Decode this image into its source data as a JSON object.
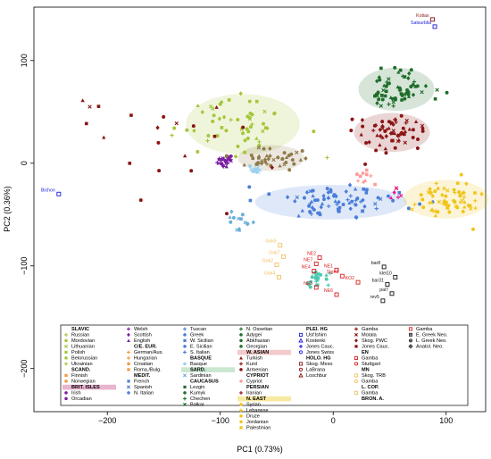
{
  "chart_data": {
    "type": "scatter",
    "xlabel": "PC1 (0.73%)",
    "ylabel": "PC2 (0.36%)",
    "xlim": [
      -265,
      135
    ],
    "ylim": [
      -242,
      152
    ],
    "xticks": [
      -200,
      -100,
      0,
      100
    ],
    "yticks": [
      -200,
      -100,
      0,
      100
    ],
    "grid": false,
    "legend_position": "bottom-center",
    "clusters": [
      {
        "name": "C/E. EUR.",
        "color": "#a4c639",
        "cx": -80,
        "cy": 38,
        "sx": 24,
        "sy": 14,
        "n": 55,
        "hull": true
      },
      {
        "name": "MEDIT.",
        "color": "#4a7dd8",
        "cx": -2,
        "cy": -38,
        "sx": 32,
        "sy": 8,
        "n": 80,
        "hull": true
      },
      {
        "name": "BRIT. ISLES",
        "color": "#7a1fa2",
        "cx": -98,
        "cy": 4,
        "sx": 4,
        "sy": 4,
        "n": 22,
        "hull": false
      },
      {
        "name": "BASQUE",
        "color": "#9ad0ef",
        "cx": -69,
        "cy": -4,
        "sx": 3,
        "sy": 3,
        "n": 10,
        "hull": false
      },
      {
        "name": "SARD.",
        "color": "#6aaed6",
        "cx": -82,
        "cy": -60,
        "sx": 6,
        "sy": 6,
        "n": 14,
        "hull": false
      },
      {
        "name": "CAUCASUS",
        "color": "#1f6e2a",
        "cx": 56,
        "cy": 72,
        "sx": 16,
        "sy": 10,
        "n": 65,
        "hull": true
      },
      {
        "name": "W. ASIAN",
        "color": "#8b1414",
        "cx": 52,
        "cy": 30,
        "sx": 16,
        "sy": 9,
        "n": 65,
        "hull": true
      },
      {
        "name": "N. EAST",
        "color": "#f0c419",
        "cx": 100,
        "cy": -35,
        "sx": 18,
        "sy": 9,
        "n": 65,
        "hull": true
      },
      {
        "name": "CAUCASUS W.",
        "color": "#8f7a4a",
        "cx": -55,
        "cy": 5,
        "sx": 14,
        "sy": 6,
        "n": 40,
        "hull": true
      },
      {
        "name": "CYPRIOT",
        "color": "#ff9a9a",
        "cx": 28,
        "cy": -15,
        "sx": 6,
        "sy": 4,
        "n": 10,
        "hull": false
      },
      {
        "name": "PLEI. HG",
        "color": "#e61e8c",
        "cx": 56,
        "cy": -28,
        "sx": 2,
        "sy": 3,
        "n": 6,
        "hull": false
      },
      {
        "name": "HOLO. HG",
        "color": "#8b1414",
        "cx": -160,
        "cy": 15,
        "sx": 48,
        "sy": 30,
        "n": 22,
        "hull": false
      },
      {
        "name": "EN",
        "color": "#4ec9b0",
        "cx": -12,
        "cy": -110,
        "sx": 5,
        "sy": 6,
        "n": 20,
        "hull": false
      }
    ],
    "labeled_points": [
      {
        "label": "Kotias",
        "x": 88,
        "y": 140,
        "color": "#8b1414"
      },
      {
        "label": "Satsurblia",
        "x": 90,
        "y": 133,
        "color": "#1a1ad8"
      },
      {
        "label": "Bichon",
        "x": -243,
        "y": -30,
        "color": "#1a1ad8"
      },
      {
        "label": "Gok5",
        "x": -47,
        "y": -80,
        "color": "#f0c060"
      },
      {
        "label": "Gok7",
        "x": -44,
        "y": -91,
        "color": "#f0c060"
      },
      {
        "label": "Gok2",
        "x": -50,
        "y": -99,
        "color": "#f0c060"
      },
      {
        "label": "Gok4",
        "x": -48,
        "y": -111,
        "color": "#f0c060"
      },
      {
        "label": "NE2",
        "x": -12,
        "y": -92,
        "color": "#d81e1e"
      },
      {
        "label": "NE7",
        "x": -15,
        "y": -98,
        "color": "#d81e1e"
      },
      {
        "label": "NE4",
        "x": -17,
        "y": -105,
        "color": "#d81e1e"
      },
      {
        "label": "NE1",
        "x": 3,
        "y": -104,
        "color": "#d81e1e"
      },
      {
        "label": "Stgn1",
        "x": 8,
        "y": -110,
        "color": "#d81e1e"
      },
      {
        "label": "NE5",
        "x": -15,
        "y": -121,
        "color": "#d81e1e"
      },
      {
        "label": "KO2",
        "x": 22,
        "y": -116,
        "color": "#d81e1e"
      },
      {
        "label": "NE6",
        "x": 3,
        "y": -128,
        "color": "#d81e1e"
      },
      {
        "label": "bar8",
        "x": 45,
        "y": -101,
        "color": "#111111"
      },
      {
        "label": "klei10",
        "x": 55,
        "y": -111,
        "color": "#111111"
      },
      {
        "label": "bar31",
        "x": 48,
        "y": -118,
        "color": "#111111"
      },
      {
        "label": "pal7",
        "x": 52,
        "y": -127,
        "color": "#111111"
      },
      {
        "label": "rev5",
        "x": 44,
        "y": -134,
        "color": "#111111"
      }
    ],
    "legend": [
      {
        "label": "SLAVIC",
        "bold": true,
        "color": "#000000",
        "marker": "none"
      },
      {
        "label": "Russian",
        "bold": false,
        "color": "#a4c639",
        "marker": "plus"
      },
      {
        "label": "Mordovian",
        "bold": false,
        "color": "#a4c639",
        "marker": "dot"
      },
      {
        "label": "Lithuanian",
        "bold": false,
        "color": "#a4c639",
        "marker": "cross"
      },
      {
        "label": "Polish",
        "bold": false,
        "color": "#a4c639",
        "marker": "square"
      },
      {
        "label": "Belorussian",
        "bold": false,
        "color": "#a4c639",
        "marker": "dot"
      },
      {
        "label": "Ukrainian",
        "bold": false,
        "color": "#a4c639",
        "marker": "plus"
      },
      {
        "label": "SCAND.",
        "bold": true,
        "color": "#000000",
        "marker": "none"
      },
      {
        "label": "Finnish",
        "bold": false,
        "color": "#f09a3a",
        "marker": "square"
      },
      {
        "label": "Norwegian",
        "bold": false,
        "color": "#f09a3a",
        "marker": "dot"
      },
      {
        "label": "BRIT. ISLES",
        "bold": true,
        "color": "#e9b5d0",
        "marker": "band"
      },
      {
        "label": "Irish",
        "bold": false,
        "color": "#7a1fa2",
        "marker": "dot"
      },
      {
        "label": "Orcadian",
        "bold": false,
        "color": "#7a1fa2",
        "marker": "dot"
      },
      {
        "label": "Welsh",
        "bold": false,
        "color": "#7a1fa2",
        "marker": "plus"
      },
      {
        "label": "Scottish",
        "bold": false,
        "color": "#7a1fa2",
        "marker": "diamond"
      },
      {
        "label": "English",
        "bold": false,
        "color": "#7a1fa2",
        "marker": "triangle"
      },
      {
        "label": "C/E. EUR.",
        "bold": true,
        "color": "#000000",
        "marker": "none"
      },
      {
        "label": "German/Aus.",
        "bold": false,
        "color": "#f09a3a",
        "marker": "plus"
      },
      {
        "label": "Hungarian",
        "bold": false,
        "color": "#f09a3a",
        "marker": "plus"
      },
      {
        "label": "Croatian",
        "bold": false,
        "color": "#f09a3a",
        "marker": "dot"
      },
      {
        "label": "Roma./Bulg.",
        "bold": false,
        "color": "#f09a3a",
        "marker": "square"
      },
      {
        "label": "MEDIT.",
        "bold": true,
        "color": "#000000",
        "marker": "none"
      },
      {
        "label": "French",
        "bold": false,
        "color": "#4a7dd8",
        "marker": "square"
      },
      {
        "label": "Spanish",
        "bold": false,
        "color": "#4a7dd8",
        "marker": "cross"
      },
      {
        "label": "N. Italian",
        "bold": false,
        "color": "#4a7dd8",
        "marker": "dot"
      },
      {
        "label": "Tuscan",
        "bold": false,
        "color": "#4a7dd8",
        "marker": "plus"
      },
      {
        "label": "Greek",
        "bold": false,
        "color": "#4a7dd8",
        "marker": "dot"
      },
      {
        "label": "W. Sicilian",
        "bold": false,
        "color": "#4a7dd8",
        "marker": "square"
      },
      {
        "label": "E. Sicilian",
        "bold": false,
        "color": "#4a7dd8",
        "marker": "dot"
      },
      {
        "label": "S. Italian",
        "bold": false,
        "color": "#4a7dd8",
        "marker": "plus"
      },
      {
        "label": "BASQUE",
        "bold": true,
        "color": "#000000",
        "marker": "none"
      },
      {
        "label": "Basque",
        "bold": false,
        "color": "#9ad0ef",
        "marker": "square"
      },
      {
        "label": "SARD.",
        "bold": true,
        "color": "#c9e7d0",
        "marker": "band"
      },
      {
        "label": "Sardinian",
        "bold": false,
        "color": "#6aaed6",
        "marker": "cross"
      },
      {
        "label": "CAUCASUS",
        "bold": true,
        "color": "#000000",
        "marker": "none"
      },
      {
        "label": "Lezgin",
        "bold": false,
        "color": "#1f6e2a",
        "marker": "square"
      },
      {
        "label": "Kumyk",
        "bold": false,
        "color": "#1f6e2a",
        "marker": "dot"
      },
      {
        "label": "Chechen",
        "bold": false,
        "color": "#1f6e2a",
        "marker": "plus"
      },
      {
        "label": "Balkar",
        "bold": false,
        "color": "#1f6e2a",
        "marker": "cross"
      },
      {
        "label": "N. Ossetian",
        "bold": false,
        "color": "#1f6e2a",
        "marker": "plus"
      },
      {
        "label": "Adygei",
        "bold": false,
        "color": "#1f6e2a",
        "marker": "dot"
      },
      {
        "label": "Abkhasian",
        "bold": false,
        "color": "#1f6e2a",
        "marker": "dot"
      },
      {
        "label": "Georgian",
        "bold": false,
        "color": "#1f6e2a",
        "marker": "dot"
      },
      {
        "label": "W. ASIAN",
        "bold": true,
        "color": "#f3c9c9",
        "marker": "band"
      },
      {
        "label": "Turkish",
        "bold": false,
        "color": "#8b1414",
        "marker": "triangle"
      },
      {
        "label": "Kurd",
        "bold": false,
        "color": "#8b1414",
        "marker": "plus"
      },
      {
        "label": "Armenian",
        "bold": false,
        "color": "#8b1414",
        "marker": "dot"
      },
      {
        "label": "CYPRIOT",
        "bold": true,
        "color": "#000000",
        "marker": "none"
      },
      {
        "label": "Cypriot",
        "bold": false,
        "color": "#ff9a9a",
        "marker": "dot"
      },
      {
        "label": "PERSIAN",
        "bold": true,
        "color": "#000000",
        "marker": "none"
      },
      {
        "label": "Iranian",
        "bold": false,
        "color": "#8b1414",
        "marker": "plus"
      },
      {
        "label": "N. EAST",
        "bold": true,
        "color": "#f7eaa0",
        "marker": "band"
      },
      {
        "label": "Syrian",
        "bold": false,
        "color": "#f0c419",
        "marker": "dot"
      },
      {
        "label": "Lebanese",
        "bold": false,
        "color": "#f0c419",
        "marker": "plus"
      },
      {
        "label": "Druze",
        "bold": false,
        "color": "#f0c419",
        "marker": "dot"
      },
      {
        "label": "Jordanian",
        "bold": false,
        "color": "#f0c419",
        "marker": "dot"
      },
      {
        "label": "Palestinian",
        "bold": false,
        "color": "#f0c419",
        "marker": "square"
      },
      {
        "label": "PLEI. HG",
        "bold": true,
        "color": "#000000",
        "marker": "none"
      },
      {
        "label": "Ust'Ishim",
        "bold": false,
        "color": "#1a1ad8",
        "marker": "open-square"
      },
      {
        "label": "Kostenki",
        "bold": false,
        "color": "#1a1ad8",
        "marker": "open-triangle"
      },
      {
        "label": "Jones Cauc.",
        "bold": false,
        "color": "#1a1ad8",
        "marker": "plus"
      },
      {
        "label": "Jones Swiss",
        "bold": false,
        "color": "#1a1ad8",
        "marker": "open-circle"
      },
      {
        "label": "HOLO. HG",
        "bold": true,
        "color": "#000000",
        "marker": "none"
      },
      {
        "label": "Skog. Meso",
        "bold": false,
        "color": "#8b1414",
        "marker": "open-square"
      },
      {
        "label": "LaBrana",
        "bold": false,
        "color": "#8b1414",
        "marker": "open-circle"
      },
      {
        "label": "Loschbur",
        "bold": false,
        "color": "#8b1414",
        "marker": "open-triangle"
      },
      {
        "label": "Gamba",
        "bold": false,
        "color": "#8b1414",
        "marker": "plus"
      },
      {
        "label": "Motala",
        "bold": false,
        "color": "#8b1414",
        "marker": "cross"
      },
      {
        "label": "Skog. PWC",
        "bold": false,
        "color": "#8b1414",
        "marker": "diamond"
      },
      {
        "label": "Jones Cauc.",
        "bold": false,
        "color": "#8b1414",
        "marker": "star"
      },
      {
        "label": "EN",
        "bold": true,
        "color": "#000000",
        "marker": "none"
      },
      {
        "label": "Gamba",
        "bold": false,
        "color": "#d81e1e",
        "marker": "open-square"
      },
      {
        "label": "Stuttgart",
        "bold": false,
        "color": "#d81e1e",
        "marker": "open-circle"
      },
      {
        "label": "MN",
        "bold": true,
        "color": "#000000",
        "marker": "none"
      },
      {
        "label": "Skog. TRB",
        "bold": false,
        "color": "#f0c060",
        "marker": "open-square"
      },
      {
        "label": "Gamba",
        "bold": false,
        "color": "#f0c060",
        "marker": "open-circle"
      },
      {
        "label": "L. COP.",
        "bold": true,
        "color": "#000000",
        "marker": "none"
      },
      {
        "label": "Gamba",
        "bold": false,
        "color": "#f0c060",
        "marker": "open-square"
      },
      {
        "label": "BRON. A.",
        "bold": true,
        "color": "#000000",
        "marker": "none"
      },
      {
        "label": "Gamba",
        "bold": false,
        "color": "#d81e1e",
        "marker": "open-square"
      },
      {
        "label": "E. Greek Neo.",
        "bold": false,
        "color": "#333333",
        "marker": "grid-square"
      },
      {
        "label": "L. Greek Neo.",
        "bold": false,
        "color": "#333333",
        "marker": "grid-circle"
      },
      {
        "label": "Anatol. Neo.",
        "bold": false,
        "color": "#333333",
        "marker": "grid-diamond"
      }
    ]
  }
}
